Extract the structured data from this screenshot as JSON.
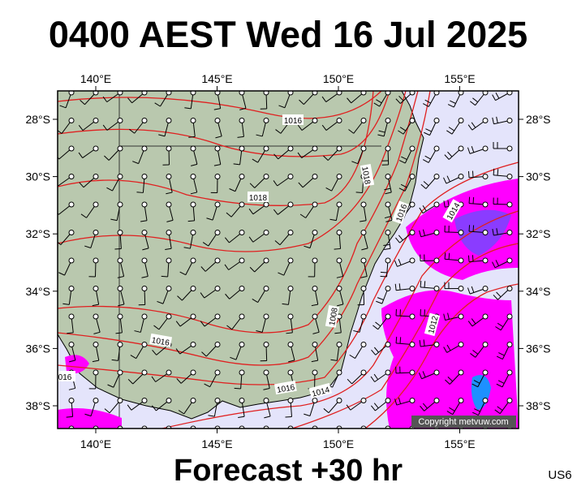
{
  "header": {
    "title": "0400 AEST Wed 16 Jul 2025"
  },
  "footer": {
    "caption": "Forecast +30 hr",
    "code": "US6"
  },
  "map": {
    "lon_ticks": [
      {
        "value": 140,
        "label": "140°E"
      },
      {
        "value": 145,
        "label": "145°E"
      },
      {
        "value": 150,
        "label": "150°E"
      },
      {
        "value": 155,
        "label": "155°E"
      }
    ],
    "lat_ticks": [
      {
        "value": -28,
        "label": "28°S"
      },
      {
        "value": -30,
        "label": "30°S"
      },
      {
        "value": -32,
        "label": "32°S"
      },
      {
        "value": -34,
        "label": "34°S"
      },
      {
        "value": -36,
        "label": "36°S"
      },
      {
        "value": -38,
        "label": "38°S"
      }
    ],
    "isobar_labels": [
      1016,
      1018,
      1018,
      1016,
      1014,
      1012,
      1008,
      1016,
      1016,
      1014,
      "016"
    ],
    "copyright": "Copyright metvuw.com"
  }
}
